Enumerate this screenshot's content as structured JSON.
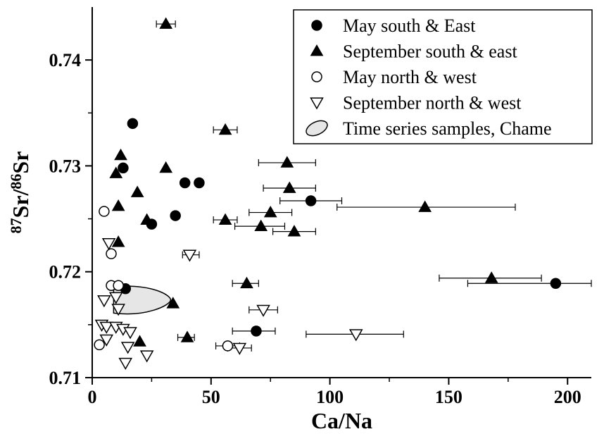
{
  "chart_data": {
    "type": "scatter",
    "xlabel": "Ca/Na",
    "ylabel": {
      "sup1": "87",
      "base1": "Sr/",
      "sup2": "86",
      "base2": "Sr"
    },
    "xlim": [
      0,
      210
    ],
    "ylim": [
      0.71,
      0.745
    ],
    "xticks": [
      0,
      50,
      100,
      150,
      200
    ],
    "xtick_labels": [
      "0",
      "50",
      "100",
      "150",
      "200"
    ],
    "yticks": [
      0.71,
      0.72,
      0.73,
      0.74
    ],
    "ytick_labels": [
      "0.71",
      "0.72",
      "0.73",
      "0.74"
    ],
    "grid": false,
    "legend_position": "top-right",
    "legend": [
      {
        "label": "May south & East",
        "marker": "filled-circle"
      },
      {
        "label": "September south & east",
        "marker": "filled-triangle-up"
      },
      {
        "label": "May north & west",
        "marker": "open-circle"
      },
      {
        "label": "September north & west",
        "marker": "open-triangle-down"
      },
      {
        "label": "Time series samples, Chame",
        "marker": "grey-ellipse"
      }
    ],
    "series": [
      {
        "name": "May south & East",
        "marker": "filled-circle",
        "points": [
          {
            "x": 17,
            "y": 0.734
          },
          {
            "x": 13,
            "y": 0.7298
          },
          {
            "x": 39,
            "y": 0.7284
          },
          {
            "x": 45,
            "y": 0.7284
          },
          {
            "x": 35,
            "y": 0.7253
          },
          {
            "x": 25,
            "y": 0.7245
          },
          {
            "x": 92,
            "y": 0.7267,
            "xerr": [
              79,
              105
            ]
          },
          {
            "x": 14,
            "y": 0.7184
          },
          {
            "x": 69,
            "y": 0.7144,
            "xerr": [
              59,
              77
            ]
          },
          {
            "x": 195,
            "y": 0.7189,
            "xerr": [
              158,
              210
            ]
          }
        ]
      },
      {
        "name": "September south & east",
        "marker": "filled-triangle-up",
        "points": [
          {
            "x": 31,
            "y": 0.7434,
            "xerr": [
              27,
              35
            ]
          },
          {
            "x": 56,
            "y": 0.7334,
            "xerr": [
              51,
              61
            ]
          },
          {
            "x": 12,
            "y": 0.731
          },
          {
            "x": 10,
            "y": 0.7293
          },
          {
            "x": 31,
            "y": 0.7298
          },
          {
            "x": 82,
            "y": 0.7303,
            "xerr": [
              70,
              94
            ]
          },
          {
            "x": 19,
            "y": 0.7275
          },
          {
            "x": 83,
            "y": 0.7279,
            "xerr": [
              72,
              94
            ]
          },
          {
            "x": 11,
            "y": 0.7262
          },
          {
            "x": 140,
            "y": 0.7261,
            "xerr": [
              103,
              178
            ]
          },
          {
            "x": 75,
            "y": 0.7256,
            "xerr": [
              66,
              84
            ]
          },
          {
            "x": 23,
            "y": 0.7249
          },
          {
            "x": 56,
            "y": 0.7249,
            "xerr": [
              51,
              61
            ]
          },
          {
            "x": 71,
            "y": 0.7243,
            "xerr": [
              60,
              81
            ]
          },
          {
            "x": 85,
            "y": 0.7238,
            "xerr": [
              76,
              94
            ]
          },
          {
            "x": 11,
            "y": 0.7228
          },
          {
            "x": 65,
            "y": 0.7189,
            "xerr": [
              59,
              70
            ]
          },
          {
            "x": 168,
            "y": 0.7194,
            "xerr": [
              146,
              189
            ]
          },
          {
            "x": 34,
            "y": 0.717
          },
          {
            "x": 20,
            "y": 0.7134
          },
          {
            "x": 40,
            "y": 0.7138,
            "xerr": [
              36,
              43
            ]
          }
        ]
      },
      {
        "name": "May north & west",
        "marker": "open-circle",
        "points": [
          {
            "x": 5,
            "y": 0.7257
          },
          {
            "x": 8,
            "y": 0.7217
          },
          {
            "x": 8,
            "y": 0.7187
          },
          {
            "x": 11,
            "y": 0.7187
          },
          {
            "x": 3,
            "y": 0.7131
          },
          {
            "x": 57,
            "y": 0.713,
            "xerr": [
              52,
              62
            ]
          }
        ]
      },
      {
        "name": "September north & west",
        "marker": "open-triangle-down",
        "points": [
          {
            "x": 7,
            "y": 0.7227
          },
          {
            "x": 41,
            "y": 0.7216,
            "xerr": [
              38,
              45
            ]
          },
          {
            "x": 5,
            "y": 0.7173
          },
          {
            "x": 10,
            "y": 0.7176
          },
          {
            "x": 11,
            "y": 0.7165
          },
          {
            "x": 72,
            "y": 0.7164,
            "xerr": [
              66,
              78
            ]
          },
          {
            "x": 4,
            "y": 0.715
          },
          {
            "x": 6,
            "y": 0.7148
          },
          {
            "x": 10,
            "y": 0.7148
          },
          {
            "x": 13,
            "y": 0.7146
          },
          {
            "x": 16,
            "y": 0.7143
          },
          {
            "x": 6,
            "y": 0.7136
          },
          {
            "x": 15,
            "y": 0.7129
          },
          {
            "x": 111,
            "y": 0.7141,
            "xerr": [
              90,
              131
            ]
          },
          {
            "x": 23,
            "y": 0.7121
          },
          {
            "x": 14,
            "y": 0.7114
          },
          {
            "x": 62,
            "y": 0.7128,
            "xerr": [
              57,
              67
            ]
          }
        ]
      },
      {
        "name": "Time series samples, Chame",
        "marker": "grey-ellipse",
        "region": {
          "x_min": 9,
          "x_max": 33,
          "y_min": 0.7161,
          "y_max": 0.7186
        }
      }
    ]
  }
}
